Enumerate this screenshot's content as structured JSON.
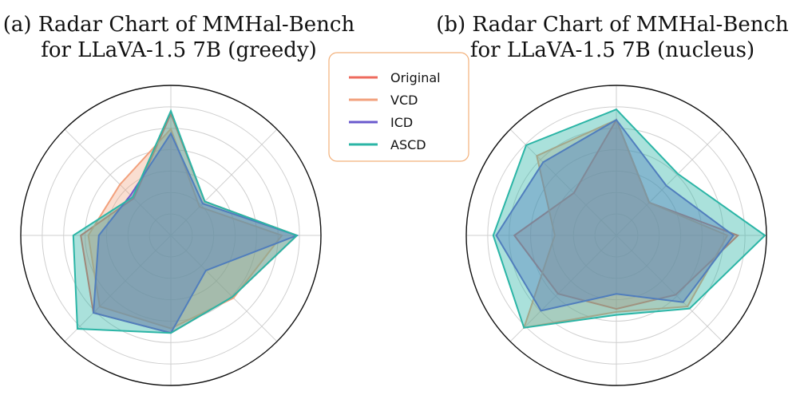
{
  "colors": {
    "Original": "#ee6b5e",
    "VCD": "#f2a07c",
    "ICD": "#6a5acd",
    "ASCD": "#2bb5a6"
  },
  "legend": {
    "position": "top-center",
    "entries": [
      "Original",
      "VCD",
      "ICD",
      "ASCD"
    ]
  },
  "chart_data": [
    {
      "type": "radar",
      "title": "(a) Radar Chart of MMHal-Bench for LLaVA-1.5 7B (greedy)",
      "title_lines": [
        "(a) Radar Chart of MMHal-Bench",
        "for LLaVA-1.5 7B (greedy)"
      ],
      "axes": 8,
      "rlim": [
        0,
        1
      ],
      "grid_rings": 7,
      "series": [
        {
          "name": "Original",
          "values": [
            0.81,
            0.32,
            0.84,
            0.58,
            0.65,
            0.73,
            0.6,
            0.35
          ]
        },
        {
          "name": "VCD",
          "values": [
            0.71,
            0.27,
            0.74,
            0.59,
            0.62,
            0.67,
            0.55,
            0.48
          ]
        },
        {
          "name": "ICD",
          "values": [
            0.68,
            0.3,
            0.84,
            0.33,
            0.65,
            0.73,
            0.48,
            0.38
          ]
        },
        {
          "name": "ASCD",
          "values": [
            0.83,
            0.32,
            0.84,
            0.58,
            0.65,
            0.88,
            0.65,
            0.36
          ]
        }
      ]
    },
    {
      "type": "radar",
      "title": "(b) Radar Chart of MMHal-Bench for LLaVA-1.5 7B (nucleus)",
      "title_lines": [
        "(b) Radar Chart of MMHal-Bench",
        "for LLaVA-1.5 7B (nucleus)"
      ],
      "axes": 8,
      "rlim": [
        0,
        1
      ],
      "grid_rings": 7,
      "series": [
        {
          "name": "Original",
          "values": [
            0.77,
            0.31,
            0.81,
            0.56,
            0.49,
            0.55,
            0.68,
            0.4
          ]
        },
        {
          "name": "VCD",
          "values": [
            0.77,
            0.31,
            0.74,
            0.67,
            0.51,
            0.87,
            0.41,
            0.75
          ]
        },
        {
          "name": "ICD",
          "values": [
            0.77,
            0.47,
            0.78,
            0.63,
            0.39,
            0.71,
            0.8,
            0.69
          ]
        },
        {
          "name": "ASCD",
          "values": [
            0.84,
            0.58,
            0.99,
            0.69,
            0.53,
            0.87,
            0.82,
            0.85
          ]
        }
      ]
    }
  ]
}
